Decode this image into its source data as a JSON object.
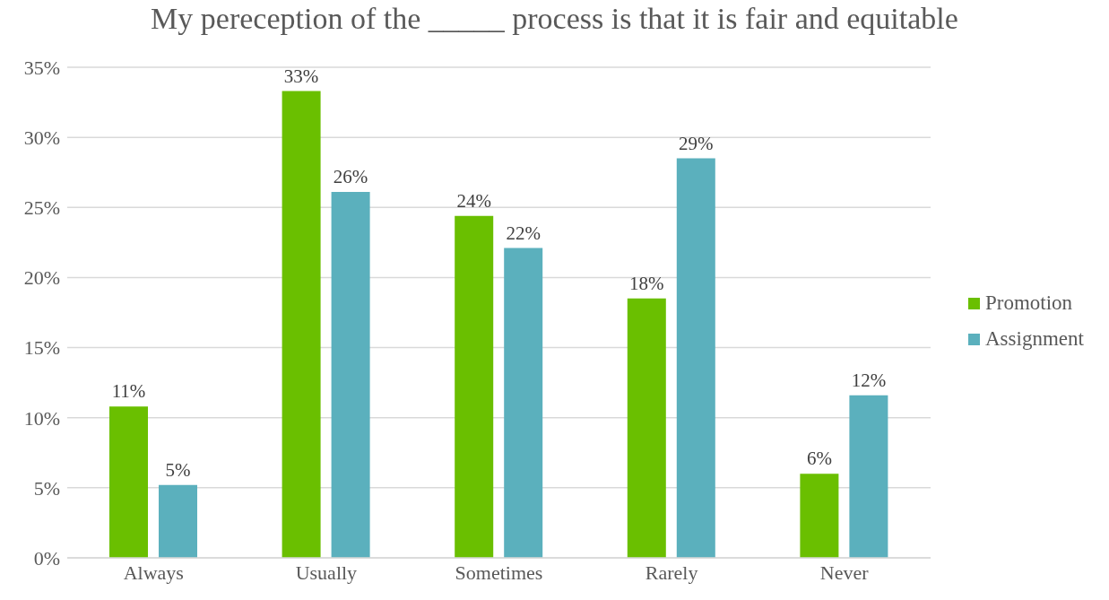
{
  "chart_data": {
    "type": "bar",
    "title": "My pereception of the _____ process is that it is fair and equitable",
    "categories": [
      "Always",
      "Usually",
      "Sometimes",
      "Rarely",
      "Never"
    ],
    "series": [
      {
        "name": "Promotion",
        "color": "#6abf00",
        "values": [
          10.8,
          33.3,
          24.4,
          18.5,
          6.0
        ],
        "value_labels": [
          "11%",
          "33%",
          "24%",
          "18%",
          "6%"
        ]
      },
      {
        "name": "Assignment",
        "color": "#5bb0bd",
        "values": [
          5.2,
          26.1,
          22.1,
          28.5,
          11.6
        ],
        "value_labels": [
          "5%",
          "26%",
          "22%",
          "29%",
          "12%"
        ]
      }
    ],
    "ylim": [
      0,
      35
    ],
    "yticks": [
      {
        "value": 0,
        "label": "0%"
      },
      {
        "value": 5,
        "label": "5%"
      },
      {
        "value": 10,
        "label": "10%"
      },
      {
        "value": 15,
        "label": "15%"
      },
      {
        "value": 20,
        "label": "20%"
      },
      {
        "value": 25,
        "label": "25%"
      },
      {
        "value": 30,
        "label": "30%"
      },
      {
        "value": 35,
        "label": "35%"
      }
    ],
    "grid": "y",
    "legend": "right"
  }
}
